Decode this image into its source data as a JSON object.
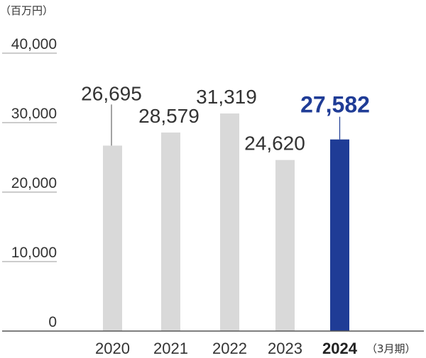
{
  "chart_data": {
    "type": "bar",
    "unit_label": "（百万円）",
    "period_label": "（3月期）",
    "categories": [
      "2020",
      "2021",
      "2022",
      "2023",
      "2024"
    ],
    "values": [
      26695,
      28579,
      31319,
      24620,
      27582
    ],
    "value_labels": [
      "26,695",
      "28,579",
      "31,319",
      "24,620",
      "27,582"
    ],
    "highlight_index": 4,
    "ylim": [
      0,
      40000
    ],
    "y_ticks": [
      0,
      10000,
      20000,
      30000,
      40000
    ],
    "y_tick_labels": [
      "0",
      "10,000",
      "20,000",
      "30,000",
      "40,000"
    ],
    "colors": {
      "bar": "#d9d9d9",
      "highlight": "#1f3c96",
      "text": "#333333",
      "line": "#999999"
    }
  }
}
